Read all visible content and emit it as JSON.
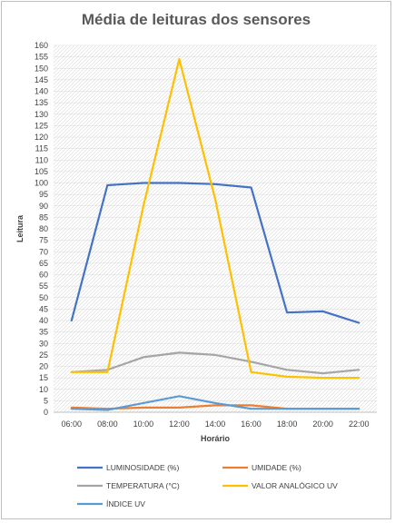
{
  "chart_data": {
    "type": "line",
    "title": "Média de leituras dos sensores",
    "xlabel": "Horário",
    "ylabel": "Leitura",
    "ylim": [
      0,
      160
    ],
    "ytick_step": 5,
    "grid": true,
    "legend_position": "bottom",
    "categories": [
      "06:00",
      "08:00",
      "10:00",
      "12:00",
      "14:00",
      "16:00",
      "18:00",
      "20:00",
      "22:00"
    ],
    "series": [
      {
        "name": "LUMINOSIDADE (%)",
        "color": "#4472C4",
        "values": [
          40,
          99,
          100,
          100,
          99.5,
          98,
          43.5,
          44,
          39
        ]
      },
      {
        "name": "UMIDADE (%)",
        "color": "#ED7D31",
        "values": [
          2,
          1.5,
          2,
          2,
          3,
          3,
          1.5,
          1.5,
          1.5
        ]
      },
      {
        "name": "TEMPERATURA (°C)",
        "color": "#A5A5A5",
        "values": [
          17.5,
          18.5,
          24,
          26,
          25,
          22,
          18.5,
          17,
          18.5
        ]
      },
      {
        "name": "VALOR ANALÓGICO UV",
        "color": "#FFC000",
        "values": [
          17.5,
          17.5,
          90,
          154,
          93,
          17.5,
          15.5,
          15,
          15
        ]
      },
      {
        "name": "ÍNDICE UV",
        "color": "#5B9BD5",
        "values": [
          1.5,
          1,
          4,
          7,
          4,
          1.5,
          1.5,
          1.5,
          1.5
        ]
      }
    ]
  }
}
